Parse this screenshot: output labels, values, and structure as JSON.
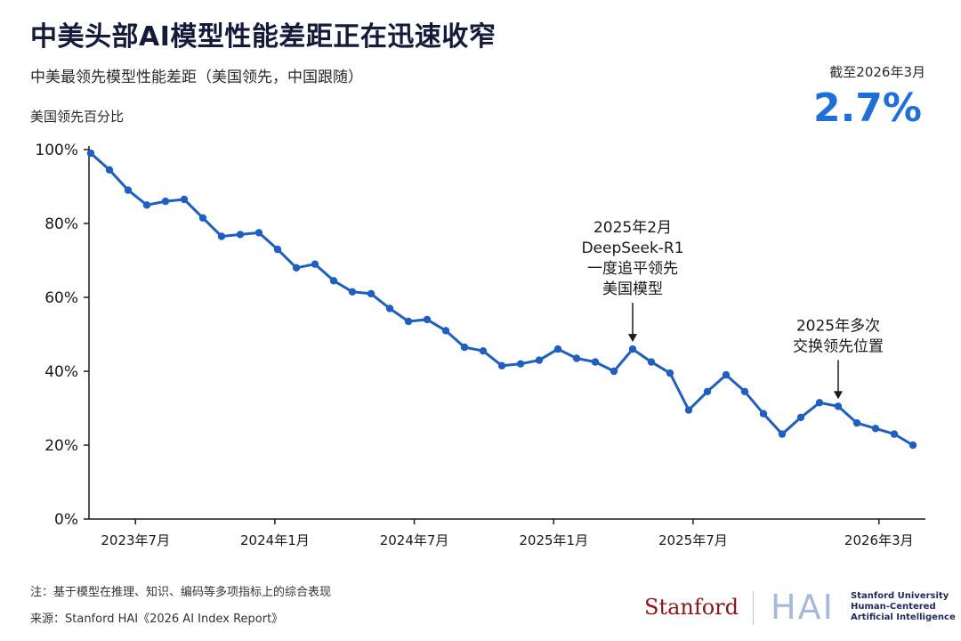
{
  "header": {
    "title": "中美头部AI模型性能差距正在迅速收窄",
    "subtitle": "中美最领先模型性能差距（美国领先，中国跟随）",
    "asof_label": "截至2026年3月",
    "asof_value": "2.7%"
  },
  "footer": {
    "note": "注：基于模型在推理、知识、编码等多项指标上的综合表现",
    "source": "来源：Stanford HAI《2026 AI Index Report》",
    "logo_stanford": "Stanford",
    "logo_hai": "HAI",
    "logo_lines": [
      "Stanford University",
      "Human-Centered",
      "Artificial Intelligence"
    ]
  },
  "colors": {
    "line": "#1e5fbf",
    "accent": "#1e6fd9",
    "axis": "#1a1a1a"
  },
  "chart_data": {
    "type": "line",
    "ylabel": "美国领先百分比",
    "ylim": [
      0,
      100
    ],
    "yticks": [
      0,
      20,
      40,
      60,
      80,
      100
    ],
    "ytick_labels": [
      "0%",
      "20%",
      "40%",
      "60%",
      "80%",
      "100%"
    ],
    "xlim": [
      "2023-05",
      "2026-05"
    ],
    "xticks": [
      "2023-07",
      "2024-01",
      "2024-07",
      "2025-01",
      "2025-07",
      "2026-03"
    ],
    "xtick_labels": [
      "2023年7月",
      "2024年1月",
      "2024年7月",
      "2025年1月",
      "2025年7月",
      "2026年3月"
    ],
    "grid": false,
    "series": [
      {
        "values": [
          99,
          94.5,
          89,
          85,
          86,
          86.5,
          81.5,
          76.5,
          77,
          77.5,
          73,
          68,
          69,
          64.5,
          61.5,
          61,
          57,
          53.5,
          54,
          51,
          46.5,
          45.5,
          41.5,
          42,
          43,
          46,
          43.5,
          42.5,
          40,
          46,
          42.5,
          39.5,
          29.5,
          34.5,
          39,
          34.5,
          28.5,
          23,
          27.5,
          31.5,
          30.5,
          26,
          24.5,
          23,
          20
        ]
      }
    ],
    "annotations": [
      {
        "lines": [
          "2025年2月",
          "DeepSeek-R1",
          "一度追平领先",
          "美国模型"
        ],
        "point_index": 29
      },
      {
        "lines": [
          "2025年多次",
          "交换领先位置"
        ],
        "point_index": 40
      }
    ]
  }
}
